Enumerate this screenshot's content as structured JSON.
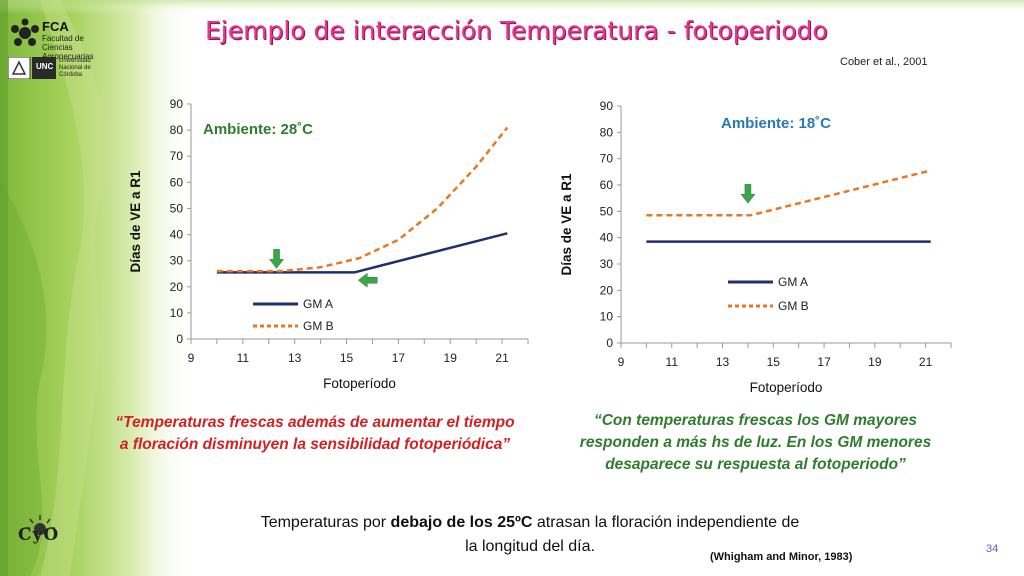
{
  "slide": {
    "title": "Ejemplo de interacción  Temperatura - fotoperiodo",
    "citation": "Cober et al., 2001",
    "quote_left": "“Temperaturas frescas además de aumentar el tiempo a floración disminuyen la sensibilidad fotoperiódica”",
    "quote_right": "“Con temperaturas frescas los GM mayores responden a más hs de luz. En los GM menores desaparece su respuesta al fotoperiodo”",
    "footer_pre": "Temperaturas por ",
    "footer_bold": "debajo de los 25ºC",
    "footer_post": " atrasan la floración independiente de la longitud del día.",
    "reference": "(Whigham and Minor, 1983)",
    "page_number": "34",
    "logo_fca": "FCA",
    "logo_fca_sub": "Facultad de Ciencias Agropecuarias",
    "logo_unc": "UNC",
    "logo_unc_sub": "Universidad Nacional de Córdoba",
    "logo_cyo": "CyO",
    "colors": {
      "title": "#e8338f",
      "quote_left": "#d42020",
      "quote_right": "#2e7d2e",
      "series_a": "#1f2f6e",
      "series_b": "#e87722",
      "arrow": "#3aa64a"
    }
  },
  "chart_data": [
    {
      "type": "line",
      "annotation": "Ambiente: 28˚C",
      "annotation_color": "#2e7d2e",
      "xlabel": "Fotoperíodo",
      "ylabel": "Días de VE a R1",
      "xlim": [
        9,
        22
      ],
      "ylim": [
        0,
        90
      ],
      "xticks": [
        9,
        11,
        13,
        15,
        17,
        19,
        21
      ],
      "yticks": [
        0,
        10,
        20,
        30,
        40,
        50,
        60,
        70,
        80,
        90
      ],
      "legend_position": "bottom-left",
      "series": [
        {
          "name": "GM A",
          "style": "solid",
          "color": "#1f2f6e",
          "points": [
            [
              10,
              25.5
            ],
            [
              15.3,
              25.5
            ],
            [
              21.2,
              40.5
            ]
          ]
        },
        {
          "name": "GM B",
          "style": "dashed",
          "color": "#e87722",
          "points": [
            [
              10,
              26
            ],
            [
              12.5,
              26
            ],
            [
              14,
              27.5
            ],
            [
              15.5,
              31
            ],
            [
              17,
              38
            ],
            [
              18.5,
              50
            ],
            [
              20,
              66
            ],
            [
              21.2,
              81
            ]
          ]
        }
      ],
      "arrows": [
        {
          "direction": "down",
          "x": 12.3,
          "y": 30.5
        },
        {
          "direction": "left",
          "x": 15.8,
          "y": 22.5
        }
      ]
    },
    {
      "type": "line",
      "annotation": "Ambiente: 18˚C",
      "annotation_color": "#2878b8",
      "xlabel": "Fotoperíodo",
      "ylabel": "Días de VE a R1",
      "xlim": [
        9,
        22
      ],
      "ylim": [
        0,
        90
      ],
      "xticks": [
        9,
        11,
        13,
        15,
        17,
        19,
        21
      ],
      "yticks": [
        0,
        10,
        20,
        30,
        40,
        50,
        60,
        70,
        80,
        90
      ],
      "legend_position": "middle-right",
      "series": [
        {
          "name": "GM A",
          "style": "solid",
          "color": "#1f2f6e",
          "points": [
            [
              10,
              38.5
            ],
            [
              21.2,
              38.5
            ]
          ]
        },
        {
          "name": "GM B",
          "style": "dashed",
          "color": "#e87722",
          "points": [
            [
              10,
              48.5
            ],
            [
              14.1,
              48.5
            ],
            [
              21.2,
              65.5
            ]
          ]
        }
      ],
      "arrows": [
        {
          "direction": "down",
          "x": 14.0,
          "y": 56.5
        }
      ]
    }
  ]
}
